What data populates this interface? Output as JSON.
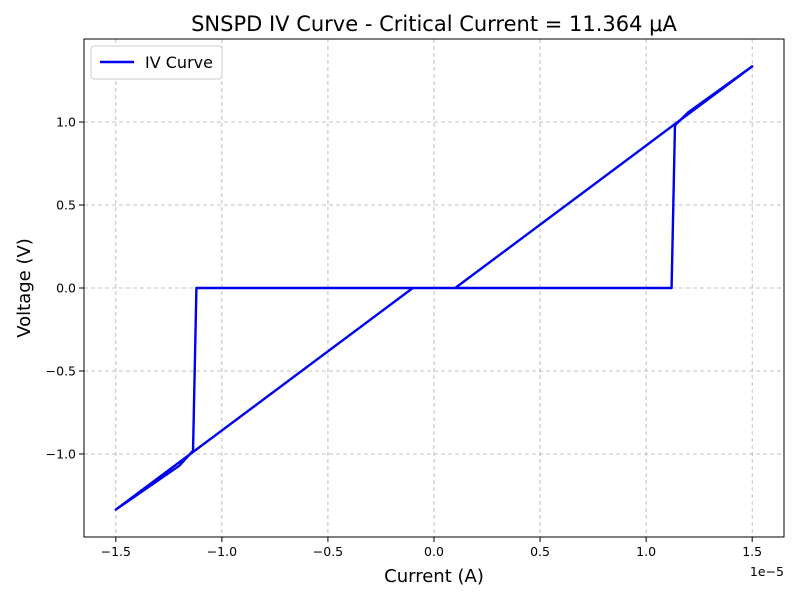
{
  "chart_data": {
    "type": "line",
    "title": "SNSPD IV Curve - Critical Current = 11.364 μA",
    "xlabel": "Current (A)",
    "ylabel": "Voltage (V)",
    "x_offset_label": "1e−5",
    "xlim": [
      -1.65e-05,
      1.65e-05
    ],
    "ylim": [
      -1.5,
      1.5
    ],
    "xticks": [
      -1.5e-05,
      -1e-05,
      -5e-06,
      0,
      5e-06,
      1e-05,
      1.5e-05
    ],
    "xtick_labels": [
      "−1.5",
      "−1.0",
      "−0.5",
      "0.0",
      "0.5",
      "1.0",
      "1.5"
    ],
    "yticks": [
      -1.0,
      -0.5,
      0.0,
      0.5,
      1.0
    ],
    "ytick_labels": [
      "−1.0",
      "−0.5",
      "0.0",
      "0.5",
      "1.0"
    ],
    "grid": true,
    "legend_position": "top-left",
    "series": [
      {
        "name": "IV Curve",
        "color": "#0000ee",
        "x": [
          0.0,
          1.12e-05,
          1.136e-05,
          1.2e-05,
          1.5e-05,
          1e-06,
          -1e-06,
          -1.5e-05,
          -1.2e-05,
          -1.136e-05,
          -1.12e-05,
          0.0
        ],
        "y": [
          0.0,
          0.0,
          0.98,
          1.06,
          1.335,
          0.0,
          0.0,
          -1.335,
          -1.07,
          -0.98,
          0.0,
          0.0
        ]
      }
    ]
  }
}
